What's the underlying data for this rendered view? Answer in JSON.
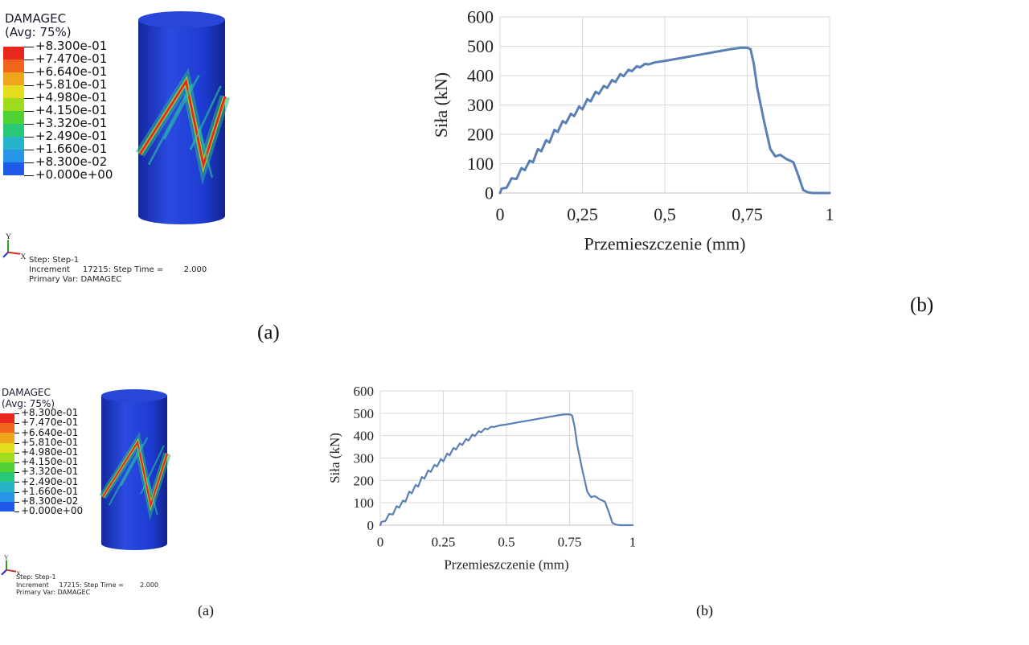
{
  "panel_a_label": "(a)",
  "panel_b_label": "(b)",
  "sim": {
    "title": "DAMAGEC",
    "subtitle": "(Avg: 75%)",
    "legend": {
      "values": [
        "+8.300e-01",
        "+7.470e-01",
        "+6.640e-01",
        "+5.810e-01",
        "+4.980e-01",
        "+4.150e-01",
        "+3.320e-01",
        "+2.490e-01",
        "+1.660e-01",
        "+8.300e-02",
        "+0.000e+00"
      ],
      "colors": [
        "#e8281e",
        "#f0641e",
        "#f0a51e",
        "#e6dc1e",
        "#a0dc1e",
        "#50d232",
        "#28c878",
        "#28b4c8",
        "#2896e6",
        "#1e5ae6",
        "#1e14d2"
      ]
    },
    "triad": {
      "y": "Y",
      "x": "X"
    },
    "info": {
      "line1": "Step: Step-1",
      "line2": "Increment     17215: Step Time =        2.000",
      "line3": "Primary Var: DAMAGEC"
    },
    "cylinder_color": "#1e3cd2",
    "crack_color": "#e8281e"
  },
  "chart_data": [
    {
      "type": "line",
      "xlabel": "Przemieszczenie (mm)",
      "ylabel": "Siła (kN)",
      "xlim": [
        0,
        1
      ],
      "ylim": [
        0,
        600
      ],
      "xticks": [
        0,
        0.25,
        0.5,
        0.75,
        1
      ],
      "xtick_labels": [
        "0",
        "0,25",
        "0,5",
        "0,75",
        "1"
      ],
      "yticks": [
        0,
        100,
        200,
        300,
        400,
        500,
        600
      ],
      "ytick_labels": [
        "0",
        "100",
        "200",
        "300",
        "400",
        "500",
        "600"
      ],
      "grid": true,
      "line_color": "#5a7fb4",
      "series": [
        {
          "x": [
            0,
            0.005,
            0.02,
            0.035,
            0.05,
            0.065,
            0.075,
            0.09,
            0.1,
            0.115,
            0.125,
            0.14,
            0.15,
            0.165,
            0.175,
            0.19,
            0.2,
            0.215,
            0.225,
            0.24,
            0.25,
            0.265,
            0.275,
            0.29,
            0.3,
            0.315,
            0.325,
            0.34,
            0.35,
            0.365,
            0.375,
            0.39,
            0.4,
            0.415,
            0.425,
            0.44,
            0.45,
            0.47,
            0.5,
            0.55,
            0.6,
            0.65,
            0.7,
            0.73,
            0.75,
            0.76,
            0.77,
            0.78,
            0.8,
            0.82,
            0.835,
            0.85,
            0.87,
            0.89,
            0.905,
            0.92,
            0.935,
            0.95,
            1
          ],
          "y": [
            0,
            15,
            18,
            50,
            48,
            85,
            78,
            110,
            105,
            150,
            142,
            180,
            172,
            215,
            208,
            245,
            238,
            270,
            262,
            295,
            285,
            320,
            312,
            345,
            338,
            365,
            358,
            385,
            378,
            405,
            398,
            420,
            415,
            432,
            428,
            440,
            438,
            445,
            450,
            460,
            470,
            480,
            490,
            495,
            495,
            490,
            440,
            360,
            250,
            150,
            125,
            130,
            115,
            105,
            60,
            10,
            2,
            0,
            0
          ]
        }
      ]
    },
    {
      "type": "line",
      "xlabel": "Przemieszczenie (mm)",
      "ylabel": "Siła (kN)",
      "xlim": [
        0,
        1
      ],
      "ylim": [
        0,
        600
      ],
      "xticks": [
        0,
        0.25,
        0.5,
        0.75,
        1
      ],
      "xtick_labels": [
        "0",
        "0.25",
        "0.5",
        "0.75",
        "1"
      ],
      "yticks": [
        0,
        100,
        200,
        300,
        400,
        500,
        600
      ],
      "ytick_labels": [
        "0",
        "100",
        "200",
        "300",
        "400",
        "500",
        "600"
      ],
      "grid": true,
      "line_color": "#5a7fb4",
      "series": [
        {
          "x": [
            0,
            0.005,
            0.02,
            0.035,
            0.05,
            0.065,
            0.075,
            0.09,
            0.1,
            0.115,
            0.125,
            0.14,
            0.15,
            0.165,
            0.175,
            0.19,
            0.2,
            0.215,
            0.225,
            0.24,
            0.25,
            0.265,
            0.275,
            0.29,
            0.3,
            0.315,
            0.325,
            0.34,
            0.35,
            0.365,
            0.375,
            0.39,
            0.4,
            0.415,
            0.425,
            0.44,
            0.45,
            0.47,
            0.5,
            0.55,
            0.6,
            0.65,
            0.7,
            0.73,
            0.75,
            0.76,
            0.77,
            0.78,
            0.8,
            0.82,
            0.835,
            0.85,
            0.87,
            0.89,
            0.905,
            0.92,
            0.935,
            0.95,
            1
          ],
          "y": [
            0,
            15,
            18,
            50,
            48,
            85,
            78,
            110,
            105,
            150,
            142,
            180,
            172,
            215,
            208,
            245,
            238,
            270,
            262,
            295,
            285,
            320,
            312,
            345,
            338,
            365,
            358,
            385,
            378,
            405,
            398,
            420,
            415,
            432,
            428,
            440,
            438,
            445,
            450,
            460,
            470,
            480,
            490,
            495,
            495,
            490,
            440,
            360,
            250,
            150,
            125,
            130,
            115,
            105,
            60,
            10,
            2,
            0,
            0
          ]
        }
      ]
    }
  ]
}
